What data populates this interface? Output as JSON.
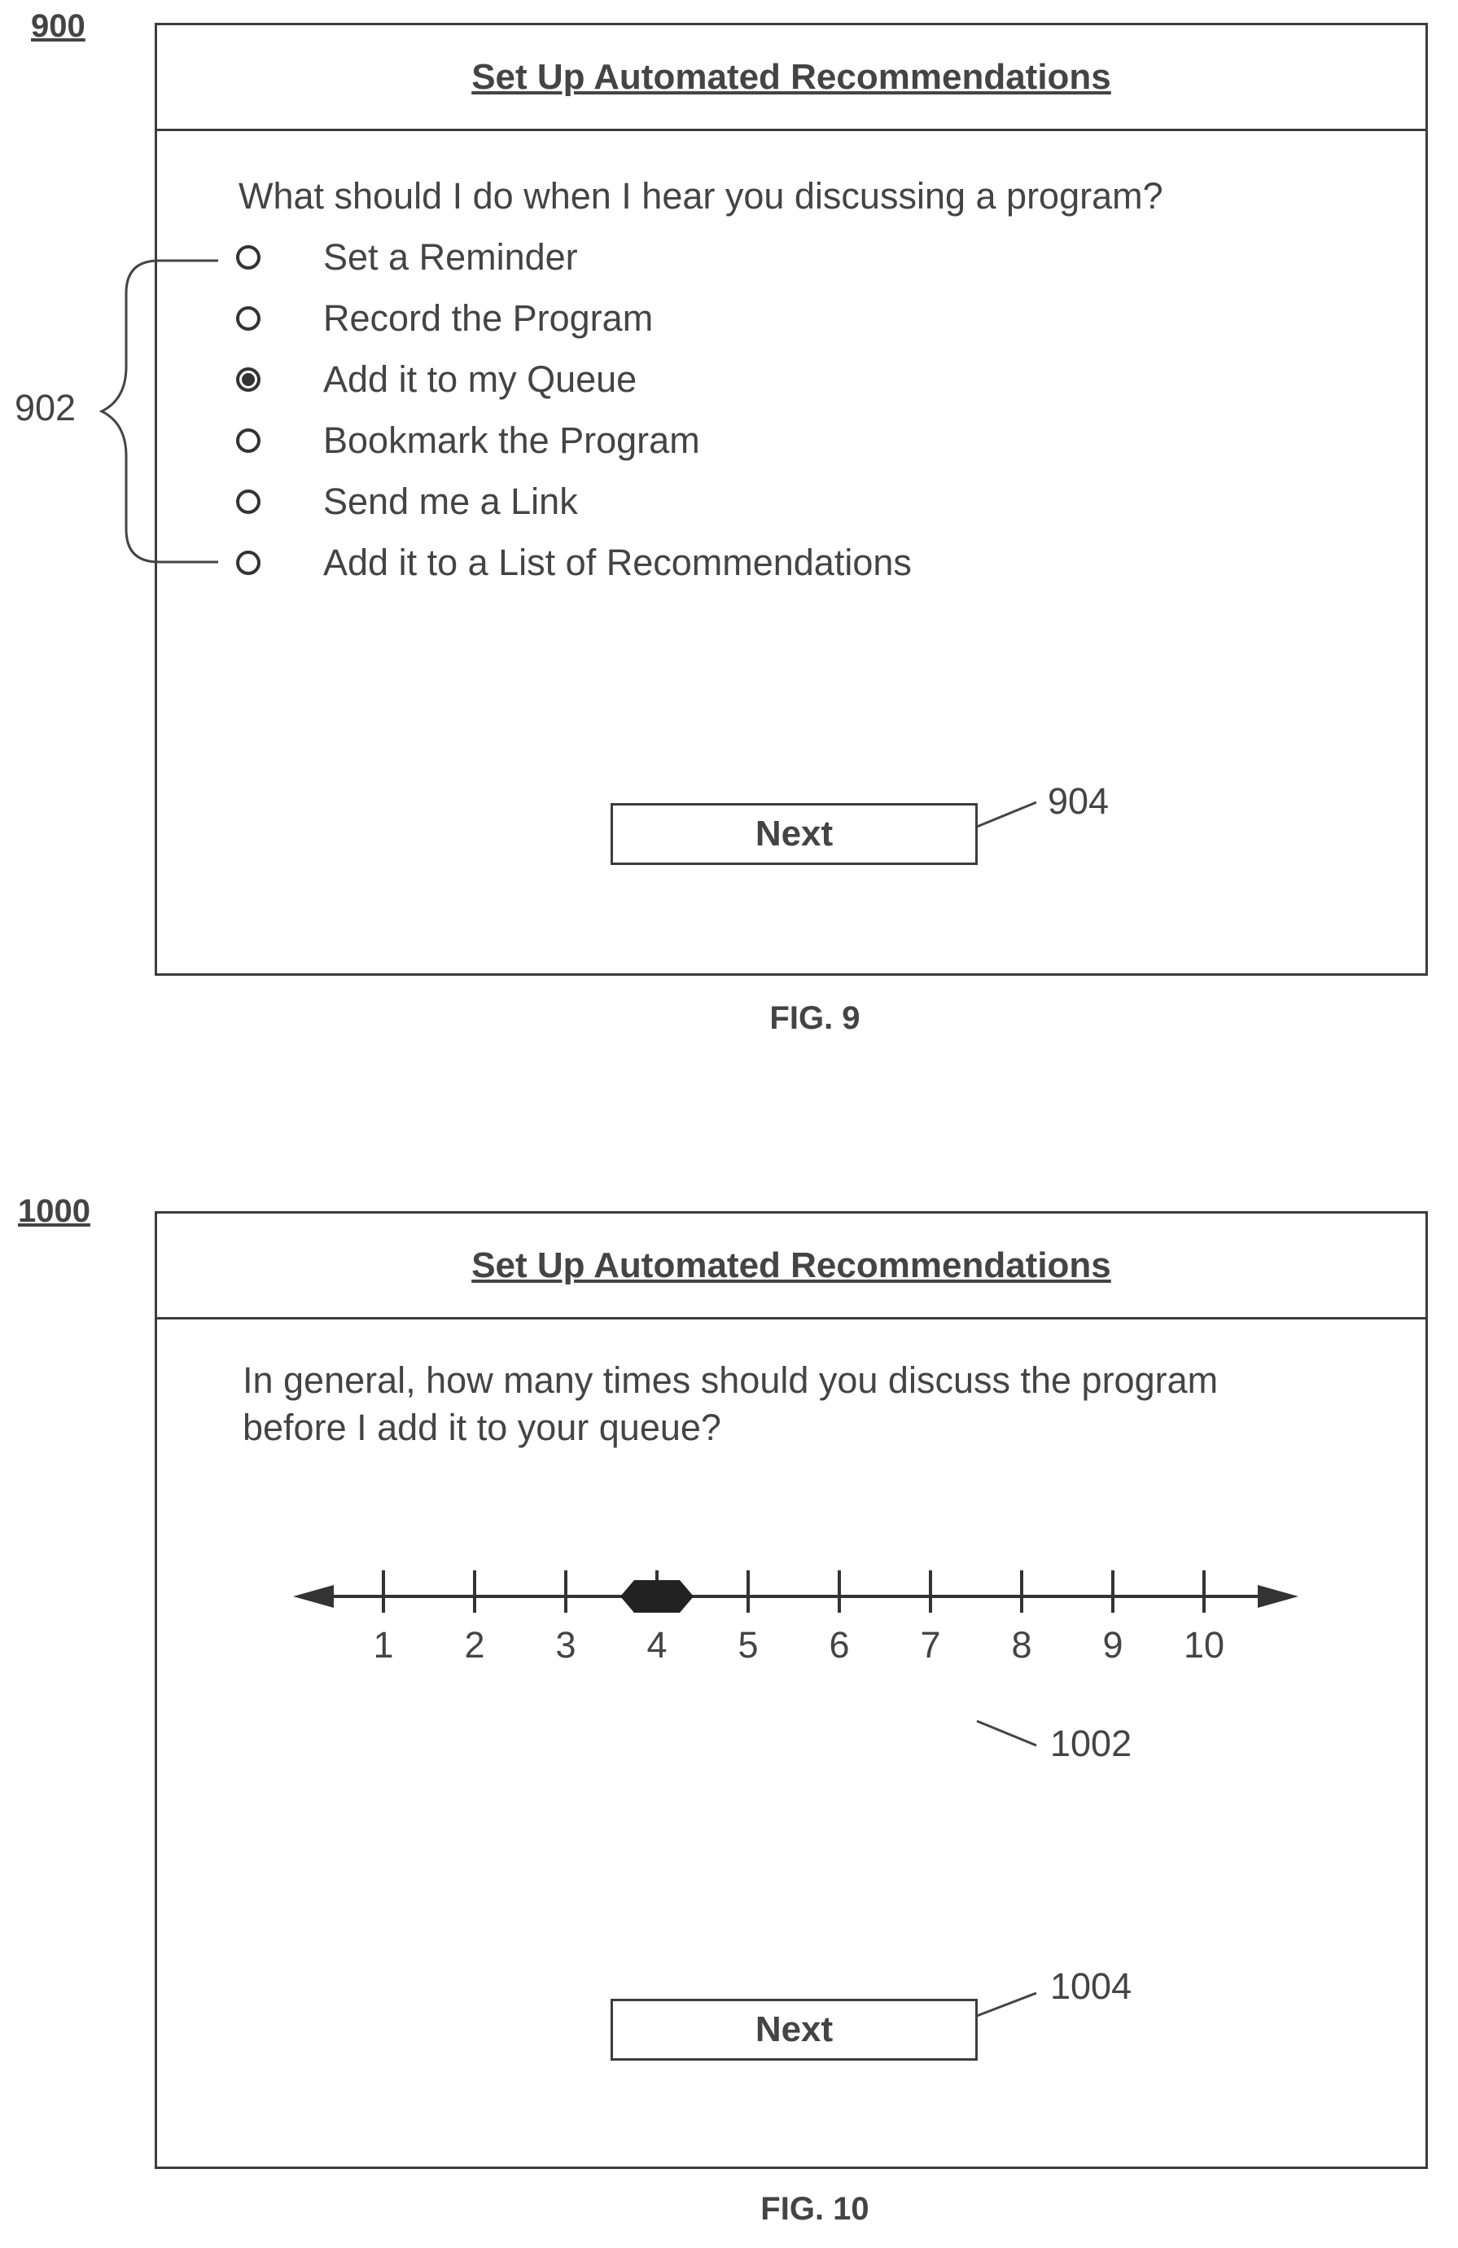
{
  "fig9": {
    "ref": "900",
    "title": "Set Up Automated Recommendations",
    "question": "What should I do when I hear you discussing a program?",
    "options": [
      {
        "label": "Set a Reminder",
        "selected": false
      },
      {
        "label": "Record the Program",
        "selected": false
      },
      {
        "label": "Add it to my Queue",
        "selected": true
      },
      {
        "label": "Bookmark the Program",
        "selected": false
      },
      {
        "label": "Send me a Link",
        "selected": false
      },
      {
        "label": "Add it to a List of Recommendations",
        "selected": false
      }
    ],
    "options_callout": "902",
    "next_label": "Next",
    "next_callout": "904",
    "caption": "FIG. 9"
  },
  "fig10": {
    "ref": "1000",
    "title": "Set Up Automated Recommendations",
    "question_line1": "In general, how many times should you discuss the program",
    "question_line2": "before I add it to your queue?",
    "slider": {
      "ticks": [
        "1",
        "2",
        "3",
        "4",
        "5",
        "6",
        "7",
        "8",
        "9",
        "10"
      ],
      "min": 1,
      "max": 10,
      "value": 4
    },
    "slider_callout": "1002",
    "next_label": "Next",
    "next_callout": "1004",
    "caption": "FIG. 10"
  }
}
